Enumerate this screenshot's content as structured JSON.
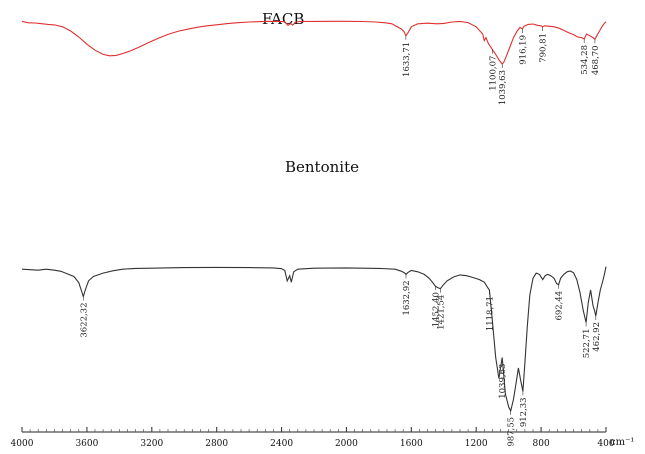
{
  "chart_data": {
    "type": "line",
    "xlabel": "cm⁻¹",
    "x_reversed": true,
    "xlim": [
      4000,
      400
    ],
    "x_ticks": [
      "4000",
      "3600",
      "3200",
      "2800",
      "2400",
      "2000",
      "1600",
      "1200",
      "800",
      "400"
    ],
    "grid": false,
    "legend": "none",
    "series": [
      {
        "name": "FACB",
        "color": "#e03030",
        "points": [
          [
            4000,
            0.905
          ],
          [
            3960,
            0.893
          ],
          [
            3920,
            0.892
          ],
          [
            3880,
            0.886
          ],
          [
            3840,
            0.88
          ],
          [
            3800,
            0.876
          ],
          [
            3750,
            0.86
          ],
          [
            3700,
            0.825
          ],
          [
            3650,
            0.775
          ],
          [
            3600,
            0.715
          ],
          [
            3550,
            0.665
          ],
          [
            3500,
            0.63
          ],
          [
            3460,
            0.618
          ],
          [
            3420,
            0.622
          ],
          [
            3380,
            0.637
          ],
          [
            3330,
            0.66
          ],
          [
            3280,
            0.69
          ],
          [
            3220,
            0.728
          ],
          [
            3160,
            0.765
          ],
          [
            3100,
            0.797
          ],
          [
            3040,
            0.822
          ],
          [
            2980,
            0.84
          ],
          [
            2920,
            0.856
          ],
          [
            2860,
            0.868
          ],
          [
            2800,
            0.877
          ],
          [
            2740,
            0.886
          ],
          [
            2680,
            0.893
          ],
          [
            2600,
            0.9
          ],
          [
            2500,
            0.905
          ],
          [
            2420,
            0.906
          ],
          [
            2380,
            0.902
          ],
          [
            2360,
            0.872
          ],
          [
            2345,
            0.888
          ],
          [
            2330,
            0.874
          ],
          [
            2315,
            0.898
          ],
          [
            2290,
            0.904
          ],
          [
            2200,
            0.905
          ],
          [
            2100,
            0.906
          ],
          [
            2000,
            0.906
          ],
          [
            1900,
            0.904
          ],
          [
            1820,
            0.9
          ],
          [
            1760,
            0.893
          ],
          [
            1720,
            0.885
          ],
          [
            1700,
            0.87
          ],
          [
            1680,
            0.855
          ],
          [
            1660,
            0.84
          ],
          [
            1645,
            0.82
          ],
          [
            1633.71,
            0.785
          ],
          [
            1620,
            0.812
          ],
          [
            1600,
            0.86
          ],
          [
            1560,
            0.885
          ],
          [
            1500,
            0.89
          ],
          [
            1440,
            0.885
          ],
          [
            1400,
            0.888
          ],
          [
            1350,
            0.9
          ],
          [
            1300,
            0.905
          ],
          [
            1250,
            0.895
          ],
          [
            1200,
            0.86
          ],
          [
            1160,
            0.8
          ],
          [
            1150,
            0.745
          ],
          [
            1140,
            0.77
          ],
          [
            1125,
            0.72
          ],
          [
            1100,
            0.67
          ],
          [
            1080,
            0.63
          ],
          [
            1060,
            0.585
          ],
          [
            1045,
            0.558
          ],
          [
            1039.63,
            0.55
          ],
          [
            1030,
            0.565
          ],
          [
            1010,
            0.63
          ],
          [
            990,
            0.7
          ],
          [
            970,
            0.77
          ],
          [
            950,
            0.82
          ],
          [
            930,
            0.855
          ],
          [
            916.19,
            0.842
          ],
          [
            905,
            0.865
          ],
          [
            880,
            0.88
          ],
          [
            850,
            0.883
          ],
          [
            820,
            0.872
          ],
          [
            800,
            0.868
          ],
          [
            790.81,
            0.858
          ],
          [
            780,
            0.868
          ],
          [
            750,
            0.865
          ],
          [
            720,
            0.86
          ],
          [
            690,
            0.848
          ],
          [
            660,
            0.83
          ],
          [
            630,
            0.81
          ],
          [
            600,
            0.795
          ],
          [
            575,
            0.775
          ],
          [
            550,
            0.77
          ],
          [
            534.28,
            0.758
          ],
          [
            520,
            0.8
          ],
          [
            500,
            0.785
          ],
          [
            480,
            0.77
          ],
          [
            468.7,
            0.755
          ],
          [
            455,
            0.79
          ],
          [
            440,
            0.825
          ],
          [
            425,
            0.86
          ],
          [
            410,
            0.89
          ],
          [
            400,
            0.902
          ]
        ],
        "peak_labels": [
          {
            "x": 1633.71,
            "label": "1633,71"
          },
          {
            "x": 1100.07,
            "label": "1100,07"
          },
          {
            "x": 1039.63,
            "label": "1039,63"
          },
          {
            "x": 916.19,
            "label": "916,19"
          },
          {
            "x": 790.81,
            "label": "790,81"
          },
          {
            "x": 534.28,
            "label": "534,28"
          },
          {
            "x": 468.7,
            "label": "468,70"
          }
        ]
      },
      {
        "name": "Bentonite",
        "color": "#333333",
        "points": [
          [
            4000,
            0.58
          ],
          [
            3950,
            0.578
          ],
          [
            3900,
            0.576
          ],
          [
            3850,
            0.58
          ],
          [
            3800,
            0.576
          ],
          [
            3760,
            0.572
          ],
          [
            3720,
            0.562
          ],
          [
            3680,
            0.552
          ],
          [
            3650,
            0.528
          ],
          [
            3635,
            0.5
          ],
          [
            3622.32,
            0.475
          ],
          [
            3610,
            0.5
          ],
          [
            3590,
            0.535
          ],
          [
            3560,
            0.552
          ],
          [
            3500,
            0.565
          ],
          [
            3440,
            0.574
          ],
          [
            3380,
            0.58
          ],
          [
            3300,
            0.583
          ],
          [
            3200,
            0.584
          ],
          [
            3000,
            0.586
          ],
          [
            2800,
            0.587
          ],
          [
            2600,
            0.586
          ],
          [
            2450,
            0.585
          ],
          [
            2400,
            0.582
          ],
          [
            2380,
            0.575
          ],
          [
            2365,
            0.535
          ],
          [
            2350,
            0.555
          ],
          [
            2340,
            0.53
          ],
          [
            2325,
            0.57
          ],
          [
            2300,
            0.58
          ],
          [
            2200,
            0.584
          ],
          [
            2000,
            0.585
          ],
          [
            1800,
            0.583
          ],
          [
            1700,
            0.58
          ],
          [
            1660,
            0.572
          ],
          [
            1640,
            0.565
          ],
          [
            1632.92,
            0.56
          ],
          [
            1620,
            0.568
          ],
          [
            1600,
            0.575
          ],
          [
            1560,
            0.57
          ],
          [
            1520,
            0.56
          ],
          [
            1490,
            0.545
          ],
          [
            1470,
            0.53
          ],
          [
            1452.4,
            0.515
          ],
          [
            1440,
            0.51
          ],
          [
            1421.54,
            0.505
          ],
          [
            1405,
            0.518
          ],
          [
            1380,
            0.535
          ],
          [
            1340,
            0.55
          ],
          [
            1300,
            0.558
          ],
          [
            1260,
            0.555
          ],
          [
            1220,
            0.548
          ],
          [
            1180,
            0.54
          ],
          [
            1150,
            0.53
          ],
          [
            1130,
            0.51
          ],
          [
            1118.71,
            0.5
          ],
          [
            1100,
            0.38
          ],
          [
            1080,
            0.24
          ],
          [
            1060,
            0.16
          ],
          [
            1039.63,
            0.24
          ],
          [
            1020,
            0.1
          ],
          [
            1000,
            0.05
          ],
          [
            987.55,
            0.035
          ],
          [
            970,
            0.08
          ],
          [
            955,
            0.14
          ],
          [
            940,
            0.2
          ],
          [
            925,
            0.15
          ],
          [
            912.33,
            0.11
          ],
          [
            900,
            0.22
          ],
          [
            885,
            0.36
          ],
          [
            870,
            0.48
          ],
          [
            850,
            0.545
          ],
          [
            830,
            0.565
          ],
          [
            810,
            0.56
          ],
          [
            790,
            0.54
          ],
          [
            775,
            0.555
          ],
          [
            760,
            0.56
          ],
          [
            740,
            0.555
          ],
          [
            720,
            0.545
          ],
          [
            705,
            0.525
          ],
          [
            692.44,
            0.52
          ],
          [
            680,
            0.545
          ],
          [
            660,
            0.56
          ],
          [
            640,
            0.57
          ],
          [
            620,
            0.573
          ],
          [
            600,
            0.566
          ],
          [
            580,
            0.54
          ],
          [
            560,
            0.49
          ],
          [
            540,
            0.42
          ],
          [
            522.71,
            0.375
          ],
          [
            510,
            0.45
          ],
          [
            495,
            0.5
          ],
          [
            480,
            0.44
          ],
          [
            470,
            0.42
          ],
          [
            462.92,
            0.4
          ],
          [
            450,
            0.45
          ],
          [
            435,
            0.5
          ],
          [
            420,
            0.535
          ],
          [
            410,
            0.56
          ],
          [
            400,
            0.59
          ]
        ],
        "peak_labels": [
          {
            "x": 3622.32,
            "label": "3622,32"
          },
          {
            "x": 1632.92,
            "label": "1632,92"
          },
          {
            "x": 1452.4,
            "label": "1452,40"
          },
          {
            "x": 1421.54,
            "label": "1421,54"
          },
          {
            "x": 1118.71,
            "label": "1118,71"
          },
          {
            "x": 1039.63,
            "label": "1039,63"
          },
          {
            "x": 987.55,
            "label": "987,55"
          },
          {
            "x": 912.33,
            "label": "912,33"
          },
          {
            "x": 692.44,
            "label": "692,44"
          },
          {
            "x": 522.71,
            "label": "522,71"
          },
          {
            "x": 462.92,
            "label": "462,92"
          }
        ]
      }
    ]
  }
}
